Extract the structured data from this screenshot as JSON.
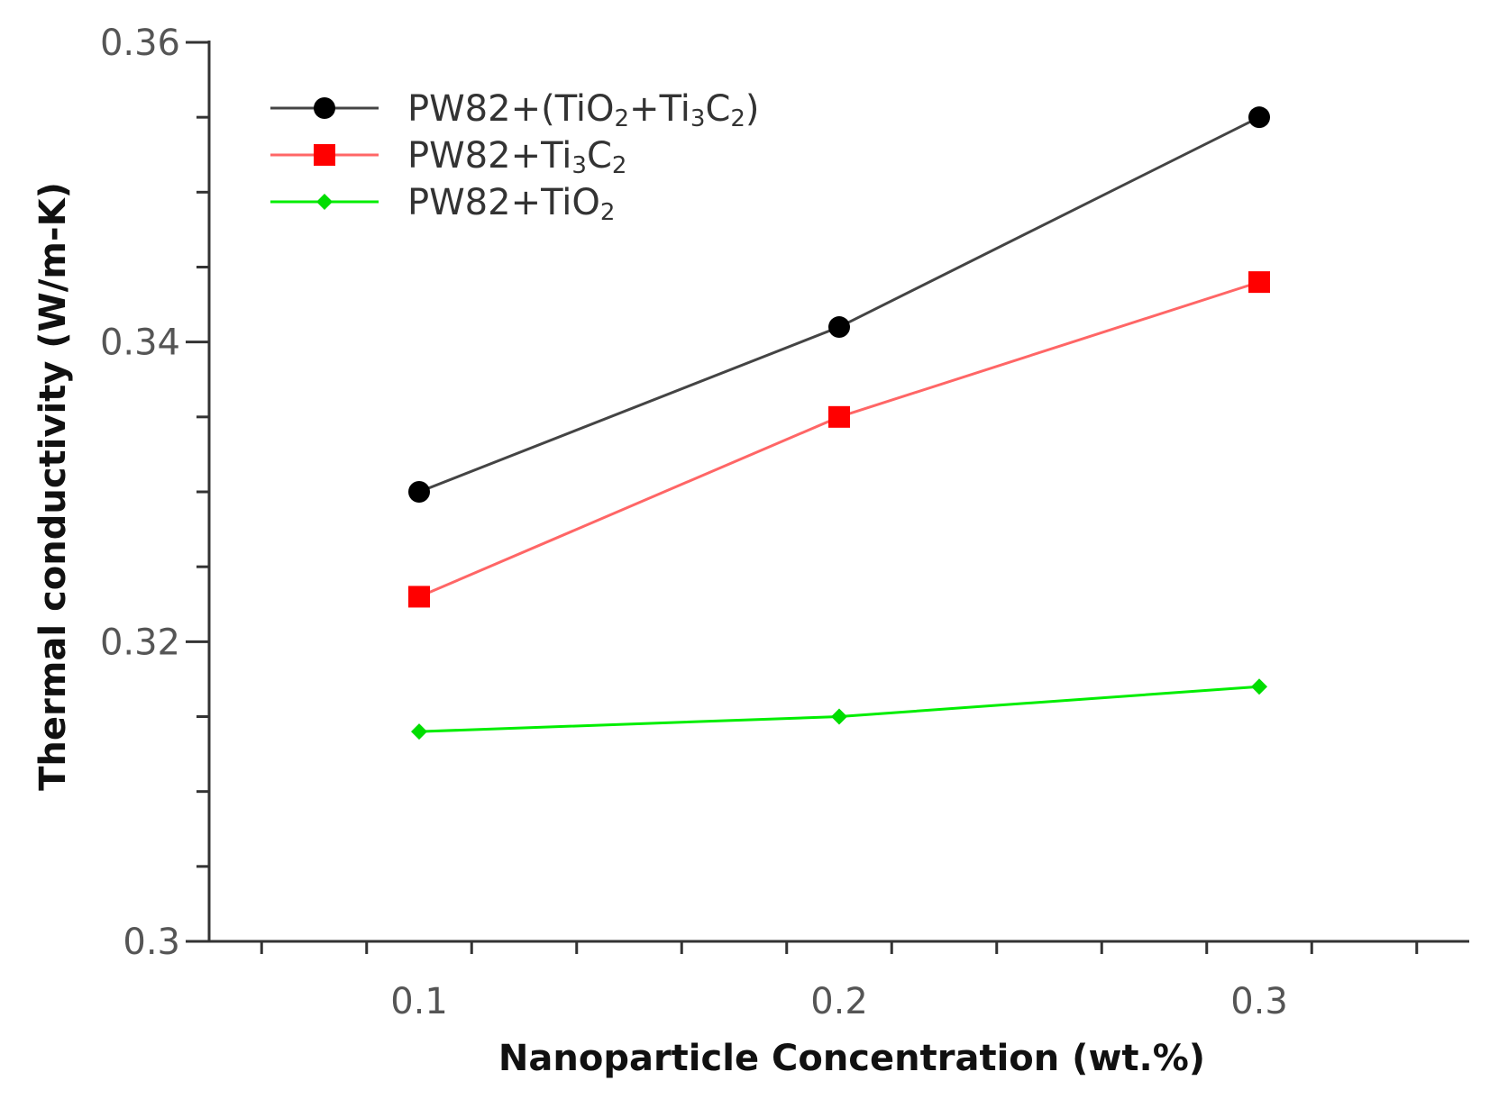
{
  "chart_data": {
    "type": "line",
    "title": "",
    "xlabel": "Nanoparticle Concentration (wt.%)",
    "ylabel": "Thermal conductivity (W/m-K)",
    "x": [
      0.1,
      0.2,
      0.3
    ],
    "xlim": [
      0.05,
      0.35
    ],
    "ylim": [
      0.3,
      0.36
    ],
    "xticks": [
      0.1,
      0.2,
      0.3
    ],
    "xtick_labels": [
      "0.1",
      "0.2",
      "0.3"
    ],
    "yticks": [
      0.3,
      0.32,
      0.34,
      0.36
    ],
    "ytick_labels": [
      "0.3",
      "0.32",
      "0.34",
      "0.36"
    ],
    "grid": false,
    "legend_position": "top-left",
    "series": [
      {
        "name": "PW82+(TiO2+Ti3C2)",
        "legend": {
          "base": "PW82+(TiO",
          "sub1": "2",
          "mid": "+Ti",
          "sub2": "3",
          "mid2": "C",
          "sub3": "2",
          "end": ")"
        },
        "values": [
          0.33,
          0.341,
          0.355
        ],
        "color": "#444444",
        "marker_color": "#000000",
        "marker": "circle"
      },
      {
        "name": "PW82+Ti3C2",
        "legend": {
          "base": "PW82+Ti",
          "sub1": "3",
          "mid": "C",
          "sub2": "2",
          "mid2": "",
          "sub3": "",
          "end": ""
        },
        "values": [
          0.323,
          0.335,
          0.344
        ],
        "color": "#ff6666",
        "marker_color": "#ff0000",
        "marker": "square"
      },
      {
        "name": "PW82+TiO2",
        "legend": {
          "base": "PW82+TiO",
          "sub1": "2",
          "mid": "",
          "sub2": "",
          "mid2": "",
          "sub3": "",
          "end": ""
        },
        "values": [
          0.314,
          0.315,
          0.317
        ],
        "color": "#00ee00",
        "marker_color": "#00dd00",
        "marker": "diamond"
      }
    ]
  }
}
